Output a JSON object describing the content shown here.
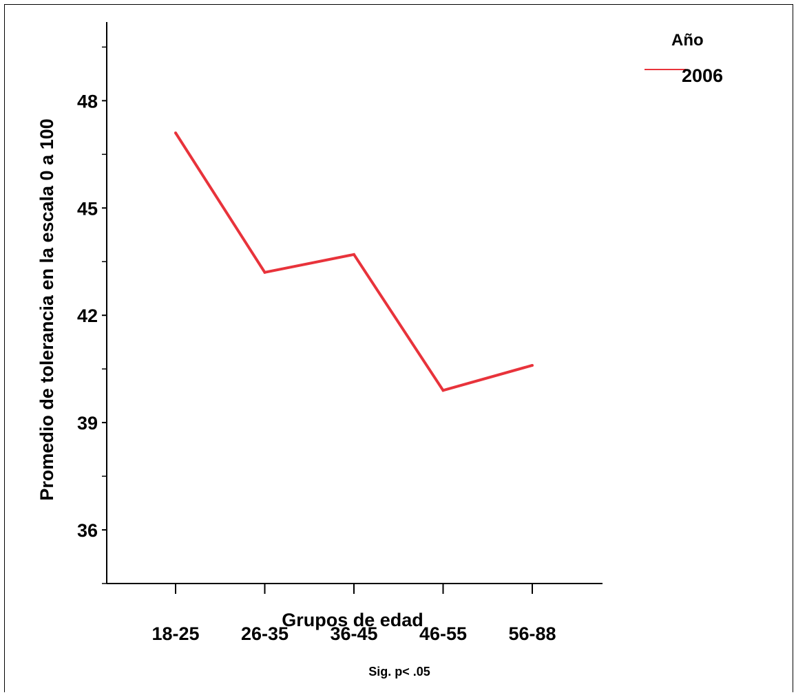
{
  "chart_data": {
    "type": "line",
    "categories": [
      "18-25",
      "26-35",
      "36-45",
      "46-55",
      "56-88"
    ],
    "series": [
      {
        "name": "2006",
        "color": "#e8333b",
        "values": [
          47.1,
          43.2,
          43.7,
          39.9,
          40.6
        ]
      }
    ],
    "xlabel": "Grupos de edad",
    "ylabel": "Promedio de tolerancia en la escala 0 a 100",
    "ylim": [
      34.5,
      50.2
    ],
    "yticks": [
      36,
      39,
      42,
      45,
      48
    ],
    "legend": {
      "title": "Año",
      "position": "top-right"
    },
    "footnote": "Sig. p< .05",
    "grid": false
  }
}
